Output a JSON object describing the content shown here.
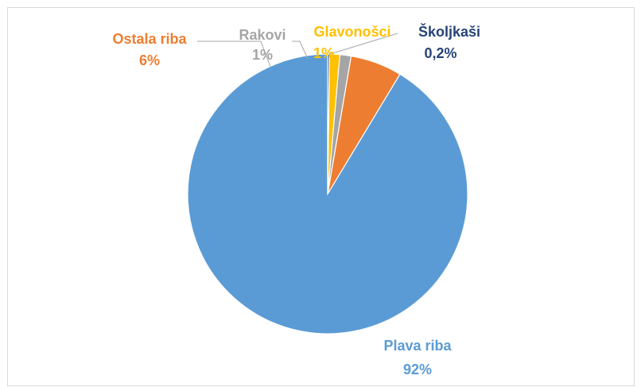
{
  "chart_data": {
    "type": "pie",
    "slices": [
      {
        "name": "Plava riba",
        "label": "92%",
        "value": 92,
        "color": "#5b9bd5"
      },
      {
        "name": "Ostala riba",
        "label": "6%",
        "value": 6,
        "color": "#ed7d31"
      },
      {
        "name": "Rakovi",
        "label": "1%",
        "value": 1.3,
        "color": "#a5a5a5"
      },
      {
        "name": "Glavonošci",
        "label": "1%",
        "value": 1.2,
        "color": "#ffc000"
      },
      {
        "name": "Školjkaši",
        "label": "0,2%",
        "value": 0.2,
        "color": "#264478"
      }
    ]
  }
}
